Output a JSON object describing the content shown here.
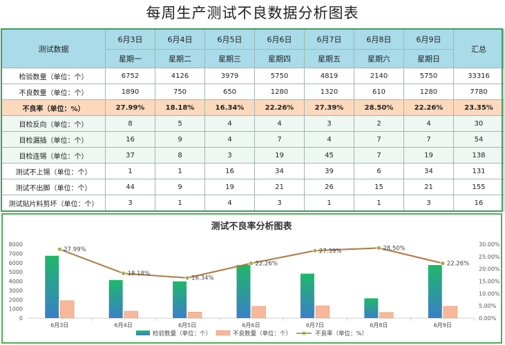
{
  "title": "每周生产测试不良数据分析图表",
  "table": {
    "corner": "测试数据",
    "total_label": "汇总",
    "dates": [
      "6月3日",
      "6月4日",
      "6月5日",
      "6月6日",
      "6月7日",
      "6月8日",
      "6月9日"
    ],
    "weekdays": [
      "星期一",
      "星期二",
      "星期三",
      "星期四",
      "星期五",
      "星期六",
      "星期日"
    ],
    "rows": [
      {
        "label": "检验数量（单位：个）",
        "values": [
          "6752",
          "4126",
          "3979",
          "5750",
          "4819",
          "2140",
          "5750"
        ],
        "total": "33316",
        "style": "plain"
      },
      {
        "label": "不良数量（单位：个）",
        "values": [
          "1890",
          "750",
          "650",
          "1280",
          "1320",
          "610",
          "1280"
        ],
        "total": "7780",
        "style": "plain"
      },
      {
        "label": "不良率（单位：%）",
        "values": [
          "27.99%",
          "18.18%",
          "16.34%",
          "22.26%",
          "27.39%",
          "28.50%",
          "22.26%"
        ],
        "total": "23.35%",
        "style": "rate"
      },
      {
        "label": "目检反向（单位：个）",
        "values": [
          "8",
          "5",
          "4",
          "4",
          "3",
          "2",
          "4"
        ],
        "total": "30",
        "style": "alt"
      },
      {
        "label": "目检漏插（单位：个）",
        "values": [
          "16",
          "9",
          "4",
          "7",
          "4",
          "7",
          "7"
        ],
        "total": "54",
        "style": "alt"
      },
      {
        "label": "目检连锡（单位：个）",
        "values": [
          "37",
          "8",
          "3",
          "19",
          "45",
          "7",
          "19"
        ],
        "total": "138",
        "style": "alt"
      },
      {
        "label": "测试不上锡（单位：个）",
        "values": [
          "1",
          "1",
          "16",
          "34",
          "39",
          "6",
          "34"
        ],
        "total": "131",
        "style": "plain"
      },
      {
        "label": "测试不出脚（单位：个）",
        "values": [
          "44",
          "9",
          "19",
          "21",
          "26",
          "15",
          "21"
        ],
        "total": "155",
        "style": "plain"
      },
      {
        "label": "测试贴片料剪坏（单位：个）",
        "values": [
          "3",
          "1",
          "4",
          "3",
          "1",
          "1",
          "3"
        ],
        "total": "16",
        "style": "plain"
      }
    ]
  },
  "chart_data": {
    "type": "bar",
    "title": "测试不良率分析图表",
    "categories": [
      "6月3日",
      "6月4日",
      "6月5日",
      "6月6日",
      "6月7日",
      "6月8日",
      "6月9日"
    ],
    "series": [
      {
        "name": "检验数量（单位：个）",
        "kind": "bar",
        "axis": "left",
        "color": "#2e8bc0",
        "values": [
          6752,
          4126,
          3979,
          5750,
          4819,
          2140,
          5750
        ]
      },
      {
        "name": "不良数量（单位：个）",
        "kind": "bar",
        "axis": "left",
        "color": "#f7b89a",
        "values": [
          1890,
          750,
          650,
          1280,
          1320,
          610,
          1280
        ]
      },
      {
        "name": "不良率（单位：%）",
        "kind": "line",
        "axis": "right",
        "color": "#9aad4e",
        "values": [
          27.99,
          18.18,
          16.34,
          22.26,
          27.39,
          28.5,
          22.26
        ]
      }
    ],
    "data_labels": [
      "27.99%",
      "18.18%",
      "16.34%",
      "22.26%",
      "27.39%",
      "28.50%",
      "22.26%"
    ],
    "ylim": [
      0,
      8000
    ],
    "yticks": [
      "0",
      "1000",
      "2000",
      "3000",
      "4000",
      "5000",
      "6000",
      "7000",
      "8000"
    ],
    "y2lim": [
      0,
      30
    ],
    "y2ticks": [
      "0.00%",
      "5.00%",
      "10.00%",
      "15.00%",
      "20.00%",
      "25.00%",
      "30.00%"
    ],
    "legend": "bottom",
    "grid": false
  }
}
